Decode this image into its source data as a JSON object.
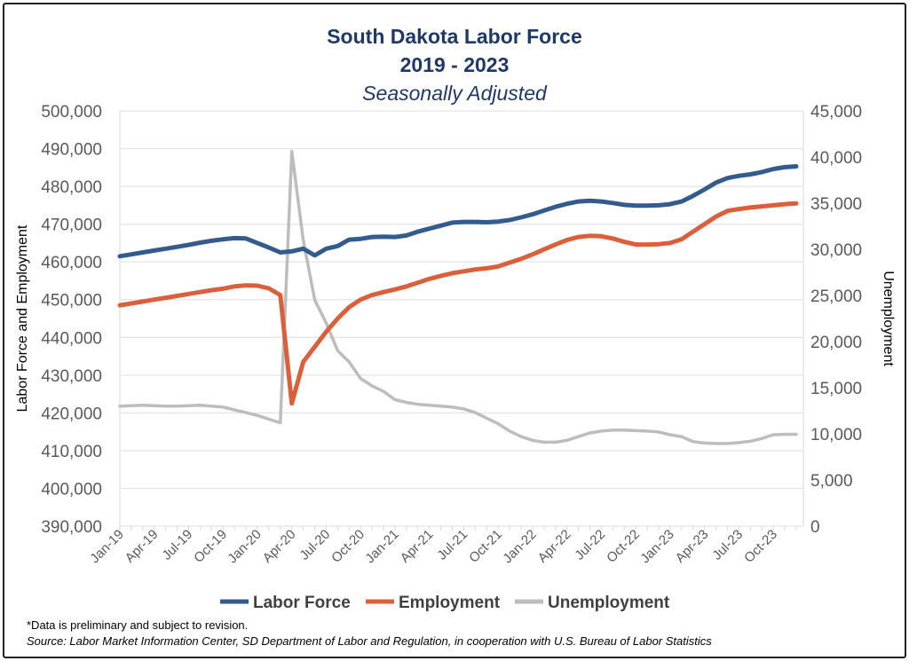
{
  "chart_data": {
    "type": "line",
    "title": "South Dakota Labor Force",
    "subtitle": "2019 - 2023",
    "subtitle2": "Seasonally Adjusted",
    "ylabel": "Labor  Force and Employment",
    "y2label": "Unemployment",
    "ylim": [
      390000,
      500000
    ],
    "y2lim": [
      0,
      45000
    ],
    "yticks": [
      "390,000",
      "400,000",
      "410,000",
      "420,000",
      "430,000",
      "440,000",
      "450,000",
      "460,000",
      "470,000",
      "480,000",
      "490,000",
      "500,000"
    ],
    "y2ticks": [
      "0",
      "5,000",
      "10,000",
      "15,000",
      "20,000",
      "25,000",
      "30,000",
      "35,000",
      "40,000",
      "45,000"
    ],
    "xticks": [
      "Jan-19",
      "Apr-19",
      "Jul-19",
      "Oct-19",
      "Jan-20",
      "Apr-20",
      "Jul-20",
      "Oct-20",
      "Jan-21",
      "Apr-21",
      "Jul-21",
      "Oct-21",
      "Jan-22",
      "Apr-22",
      "Jul-22",
      "Oct-22",
      "Jan-23",
      "Apr-23",
      "Jul-23",
      "Oct-23"
    ],
    "grid": true,
    "legend": "bottom",
    "series": [
      {
        "name": "Labor Force",
        "axis": "left",
        "color": "#335b8e",
        "values": [
          461500,
          462000,
          462500,
          463000,
          463500,
          464000,
          464500,
          465100,
          465600,
          466000,
          466300,
          466200,
          465000,
          463800,
          462500,
          462800,
          463500,
          461700,
          463500,
          464200,
          465900,
          466100,
          466600,
          466700,
          466600,
          467000,
          468000,
          468800,
          469600,
          470400,
          470600,
          470600,
          470500,
          470700,
          471100,
          471800,
          472600,
          473600,
          474600,
          475400,
          476000,
          476200,
          476000,
          475600,
          475100,
          474900,
          474900,
          475000,
          475300,
          476000,
          477500,
          479200,
          481000,
          482200,
          482800,
          483200,
          483800,
          484600,
          485100,
          485300
        ]
      },
      {
        "name": "Employment",
        "axis": "left",
        "color": "#d9603b",
        "values": [
          448500,
          449000,
          449500,
          450000,
          450500,
          451000,
          451500,
          452000,
          452500,
          452900,
          453500,
          453800,
          453700,
          453000,
          451200,
          422500,
          433500,
          437500,
          441500,
          445000,
          448000,
          450000,
          451200,
          452000,
          452700,
          453500,
          454500,
          455500,
          456300,
          457000,
          457500,
          458000,
          458300,
          458800,
          459800,
          460800,
          462000,
          463300,
          464600,
          465800,
          466600,
          466900,
          466800,
          466200,
          465300,
          464600,
          464600,
          464700,
          465000,
          466000,
          468000,
          470000,
          472000,
          473500,
          474000,
          474400,
          474700,
          475000,
          475300,
          475500
        ]
      },
      {
        "name": "Unemployment",
        "axis": "right",
        "color": "#bdbdbd",
        "values": [
          13000,
          13050,
          13100,
          13050,
          13000,
          13000,
          13050,
          13100,
          13000,
          12900,
          12600,
          12300,
          12000,
          11600,
          11200,
          40600,
          31000,
          24500,
          22000,
          19000,
          17800,
          16000,
          15200,
          14600,
          13700,
          13400,
          13200,
          13100,
          13000,
          12900,
          12700,
          12300,
          11700,
          11100,
          10300,
          9700,
          9300,
          9100,
          9100,
          9300,
          9700,
          10100,
          10300,
          10400,
          10400,
          10350,
          10300,
          10200,
          9900,
          9700,
          9150,
          9000,
          8950,
          8950,
          9050,
          9200,
          9500,
          9900,
          9950,
          9950
        ]
      }
    ]
  },
  "footnotes": {
    "note": "*Data is preliminary and subject to revision.",
    "source": "Source: Labor Market Information Center, SD Department of Labor and Regulation, in cooperation with U.S. Bureau of Labor Statistics"
  }
}
